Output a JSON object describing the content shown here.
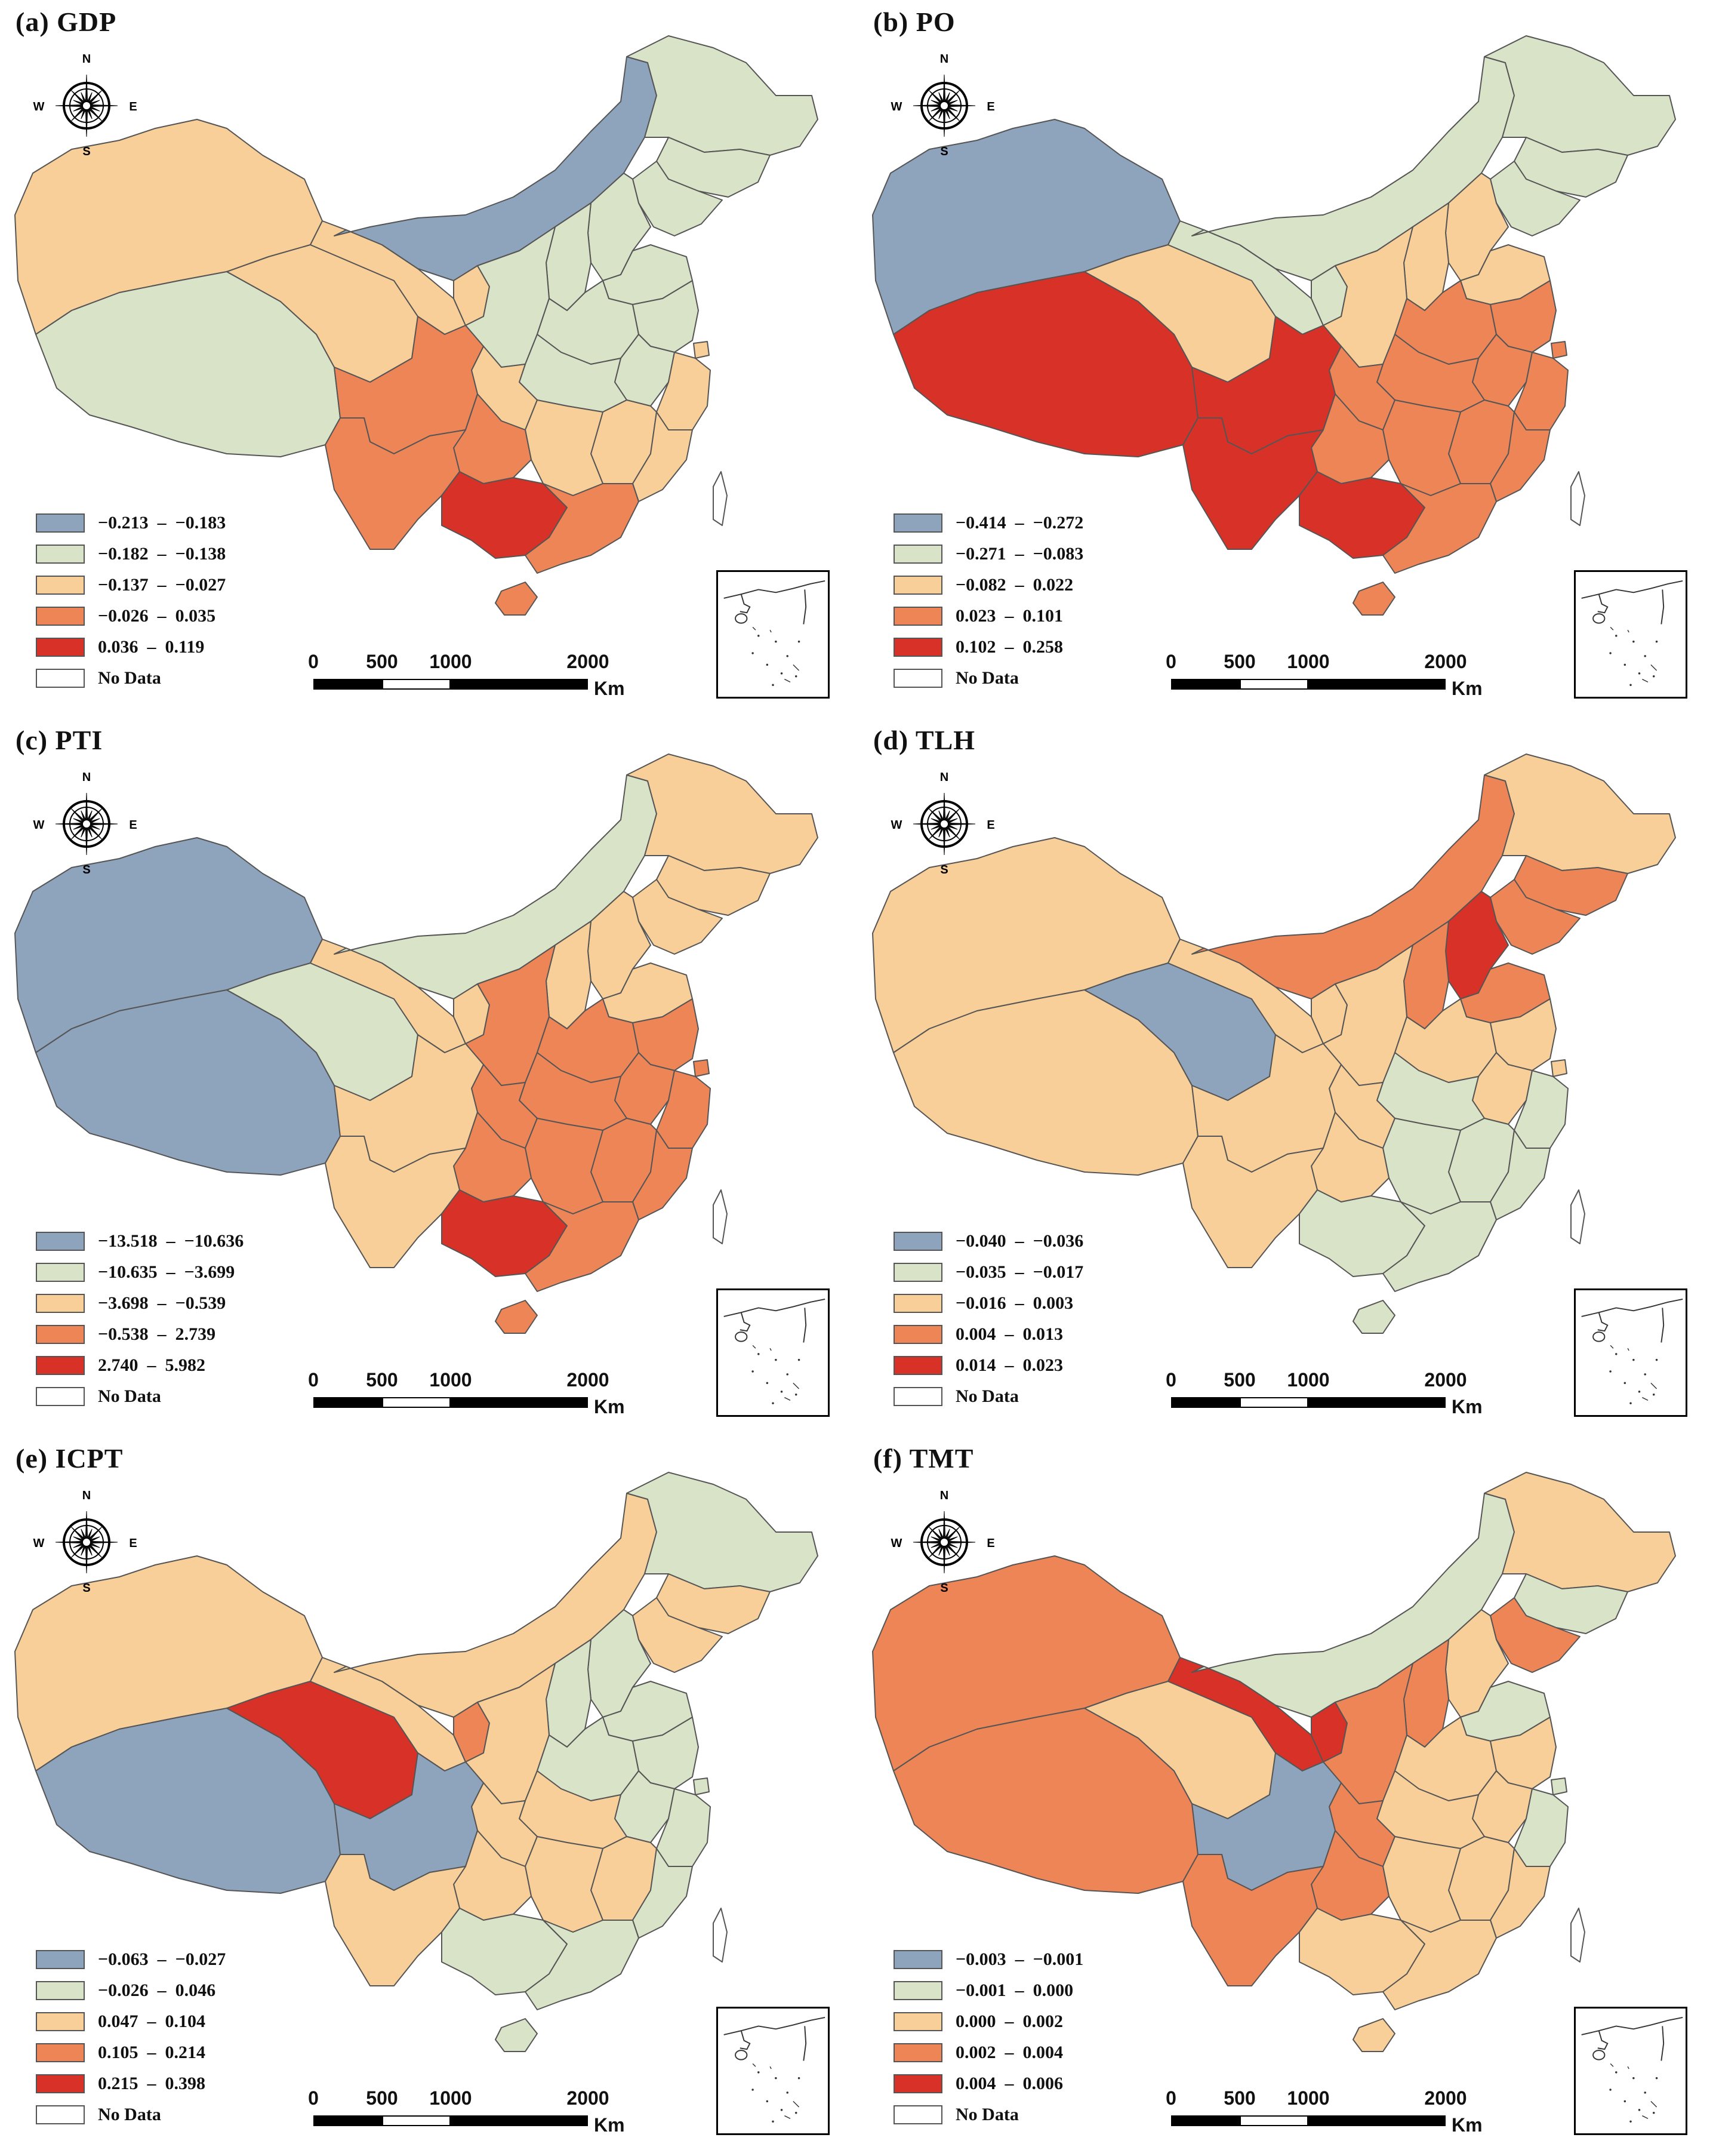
{
  "colors": {
    "class1": "#8ea3bc",
    "class2": "#d9e3c8",
    "class3": "#f8cf98",
    "class4": "#ee8557",
    "class5": "#d73128",
    "nodata": "#ffffff",
    "boundary": "#555555"
  },
  "compass": {
    "n": "N",
    "s": "S",
    "e": "E",
    "w": "W"
  },
  "scale": {
    "ticks": [
      "0",
      "500",
      "1000",
      "2000"
    ],
    "unit": "Km"
  },
  "panels": [
    {
      "title": "(a) GDP",
      "legend": [
        {
          "label": "−0.213  –  −0.183",
          "class": "class1"
        },
        {
          "label": "−0.182  –  −0.138",
          "class": "class2"
        },
        {
          "label": "−0.137  –  −0.027",
          "class": "class3"
        },
        {
          "label": "−0.026  –  0.035",
          "class": "class4"
        },
        {
          "label": "0.036  –  0.119",
          "class": "class5"
        },
        {
          "label": "No Data",
          "class": "nodata"
        }
      ],
      "regions": {
        "XJ": "class3",
        "XZ": "class2",
        "QH": "class3",
        "GS": "class3",
        "NM": "class1",
        "HLJ": "class2",
        "JL": "class2",
        "LN": "class2",
        "NX": "class3",
        "SN": "class2",
        "SX": "class2",
        "HEB": "class2",
        "BJ": "class2",
        "TJ": "class2",
        "SD": "class2",
        "HEN": "class2",
        "SC": "class4",
        "CQ": "class3",
        "GZ": "class4",
        "YN": "class4",
        "GX": "class5",
        "GD": "class4",
        "HUB": "class2",
        "HUN": "class3",
        "JX": "class3",
        "AH": "class2",
        "JS": "class2",
        "ZJ": "class3",
        "FJ": "class3",
        "SH": "class3",
        "HI": "class4",
        "TW": "nodata"
      }
    },
    {
      "title": "(b) PO",
      "legend": [
        {
          "label": "−0.414  –  −0.272",
          "class": "class1"
        },
        {
          "label": "−0.271  –  −0.083",
          "class": "class2"
        },
        {
          "label": "−0.082  –  0.022",
          "class": "class3"
        },
        {
          "label": "0.023  –  0.101",
          "class": "class4"
        },
        {
          "label": "0.102  –  0.258",
          "class": "class5"
        },
        {
          "label": "No Data",
          "class": "nodata"
        }
      ],
      "regions": {
        "XJ": "class1",
        "XZ": "class5",
        "QH": "class3",
        "GS": "class2",
        "NM": "class2",
        "HLJ": "class2",
        "JL": "class2",
        "LN": "class2",
        "NX": "class2",
        "SN": "class3",
        "SX": "class3",
        "HEB": "class3",
        "BJ": "class3",
        "TJ": "class3",
        "SD": "class3",
        "HEN": "class4",
        "SC": "class5",
        "CQ": "class4",
        "GZ": "class4",
        "YN": "class5",
        "GX": "class5",
        "GD": "class4",
        "HUB": "class4",
        "HUN": "class4",
        "JX": "class4",
        "AH": "class4",
        "JS": "class4",
        "ZJ": "class4",
        "FJ": "class4",
        "SH": "class4",
        "HI": "class4",
        "TW": "nodata"
      }
    },
    {
      "title": "(c) PTI",
      "legend": [
        {
          "label": "−13.518  –  −10.636",
          "class": "class1"
        },
        {
          "label": "−10.635  –  −3.699",
          "class": "class2"
        },
        {
          "label": "−3.698  –  −0.539",
          "class": "class3"
        },
        {
          "label": "−0.538  –  2.739",
          "class": "class4"
        },
        {
          "label": "2.740  –  5.982",
          "class": "class5"
        },
        {
          "label": "No Data",
          "class": "nodata"
        }
      ],
      "regions": {
        "XJ": "class1",
        "XZ": "class1",
        "QH": "class2",
        "GS": "class3",
        "NM": "class2",
        "HLJ": "class3",
        "JL": "class3",
        "LN": "class3",
        "NX": "class3",
        "SN": "class4",
        "SX": "class3",
        "HEB": "class3",
        "BJ": "class3",
        "TJ": "class3",
        "SD": "class3",
        "HEN": "class4",
        "SC": "class3",
        "CQ": "class4",
        "GZ": "class4",
        "YN": "class3",
        "GX": "class5",
        "GD": "class4",
        "HUB": "class4",
        "HUN": "class4",
        "JX": "class4",
        "AH": "class4",
        "JS": "class4",
        "ZJ": "class4",
        "FJ": "class4",
        "SH": "class4",
        "HI": "class4",
        "TW": "nodata"
      }
    },
    {
      "title": "(d) TLH",
      "legend": [
        {
          "label": "−0.040  –  −0.036",
          "class": "class1"
        },
        {
          "label": "−0.035  –  −0.017",
          "class": "class2"
        },
        {
          "label": "−0.016  –  0.003",
          "class": "class3"
        },
        {
          "label": "0.004  –  0.013",
          "class": "class4"
        },
        {
          "label": "0.014  –  0.023",
          "class": "class5"
        },
        {
          "label": "No Data",
          "class": "nodata"
        }
      ],
      "regions": {
        "XJ": "class3",
        "XZ": "class3",
        "QH": "class1",
        "GS": "class3",
        "NM": "class4",
        "HLJ": "class3",
        "JL": "class4",
        "LN": "class4",
        "NX": "class3",
        "SN": "class3",
        "SX": "class4",
        "HEB": "class5",
        "BJ": "class5",
        "TJ": "class5",
        "SD": "class4",
        "HEN": "class3",
        "SC": "class3",
        "CQ": "class3",
        "GZ": "class3",
        "YN": "class3",
        "GX": "class2",
        "GD": "class2",
        "HUB": "class2",
        "HUN": "class2",
        "JX": "class2",
        "AH": "class3",
        "JS": "class3",
        "ZJ": "class2",
        "FJ": "class2",
        "SH": "class3",
        "HI": "class2",
        "TW": "nodata"
      }
    },
    {
      "title": "(e) ICPT",
      "legend": [
        {
          "label": "−0.063  –  −0.027",
          "class": "class1"
        },
        {
          "label": "−0.026  –  0.046",
          "class": "class2"
        },
        {
          "label": "0.047  –  0.104",
          "class": "class3"
        },
        {
          "label": "0.105  –  0.214",
          "class": "class4"
        },
        {
          "label": "0.215  –  0.398",
          "class": "class5"
        },
        {
          "label": "No Data",
          "class": "nodata"
        }
      ],
      "regions": {
        "XJ": "class3",
        "XZ": "class1",
        "QH": "class5",
        "GS": "class3",
        "NM": "class3",
        "HLJ": "class2",
        "JL": "class3",
        "LN": "class3",
        "NX": "class4",
        "SN": "class3",
        "SX": "class2",
        "HEB": "class2",
        "BJ": "class2",
        "TJ": "class2",
        "SD": "class2",
        "HEN": "class2",
        "SC": "class1",
        "CQ": "class3",
        "GZ": "class3",
        "YN": "class3",
        "GX": "class2",
        "GD": "class2",
        "HUB": "class3",
        "HUN": "class3",
        "JX": "class3",
        "AH": "class2",
        "JS": "class2",
        "ZJ": "class2",
        "FJ": "class2",
        "SH": "class2",
        "HI": "class2",
        "TW": "nodata"
      }
    },
    {
      "title": "(f) TMT",
      "legend": [
        {
          "label": "−0.003  –  −0.001",
          "class": "class1"
        },
        {
          "label": "−0.001  –  0.000",
          "class": "class2"
        },
        {
          "label": "0.000  –  0.002",
          "class": "class3"
        },
        {
          "label": "0.002  –  0.004",
          "class": "class4"
        },
        {
          "label": "0.004  –  0.006",
          "class": "class5"
        },
        {
          "label": "No Data",
          "class": "nodata"
        }
      ],
      "regions": {
        "XJ": "class4",
        "XZ": "class4",
        "QH": "class3",
        "GS": "class5",
        "NM": "class2",
        "HLJ": "class3",
        "JL": "class2",
        "LN": "class4",
        "NX": "class5",
        "SN": "class4",
        "SX": "class4",
        "HEB": "class3",
        "BJ": "class3",
        "TJ": "class3",
        "SD": "class2",
        "HEN": "class3",
        "SC": "class1",
        "CQ": "class4",
        "GZ": "class4",
        "YN": "class4",
        "GX": "class3",
        "GD": "class3",
        "HUB": "class3",
        "HUN": "class3",
        "JX": "class3",
        "AH": "class3",
        "JS": "class3",
        "ZJ": "class2",
        "FJ": "class3",
        "SH": "class2",
        "HI": "class3",
        "TW": "nodata"
      }
    }
  ]
}
